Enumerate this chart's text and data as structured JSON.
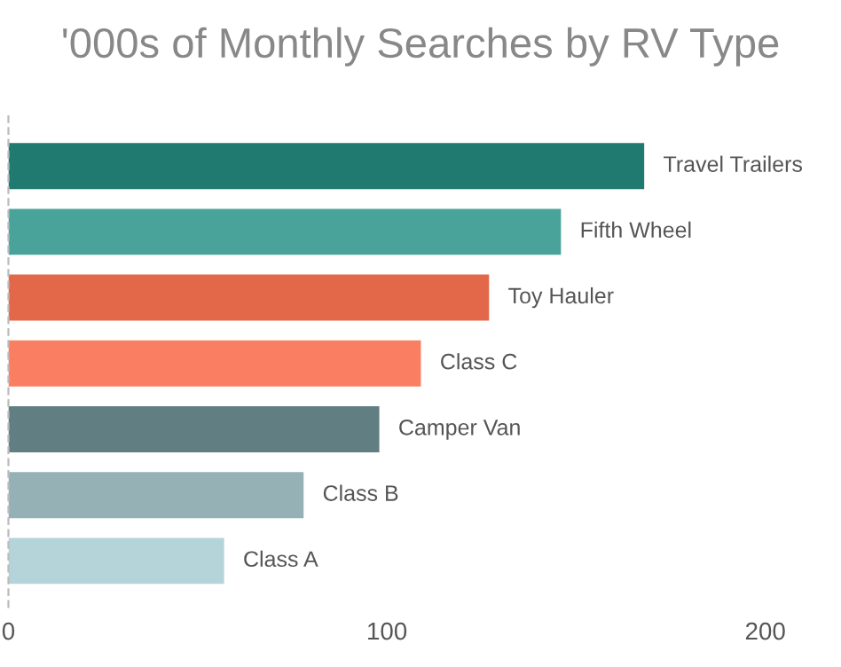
{
  "chart_data": {
    "type": "bar",
    "orientation": "horizontal",
    "title": "'000s of Monthly Searches by RV Type",
    "categories": [
      "Travel Trailers",
      "Fifth Wheel",
      "Toy Hauler",
      "Class C",
      "Camper Van",
      "Class B",
      "Class A"
    ],
    "values": [
      168,
      146,
      127,
      109,
      98,
      78,
      57
    ],
    "colors": [
      "#217a70",
      "#4aa39a",
      "#e3684a",
      "#fa7f62",
      "#617e82",
      "#95b1b6",
      "#b5d4da"
    ],
    "xlim": [
      0,
      200
    ],
    "xticks": [
      0,
      100,
      200
    ],
    "grid": false,
    "legend": false
  }
}
